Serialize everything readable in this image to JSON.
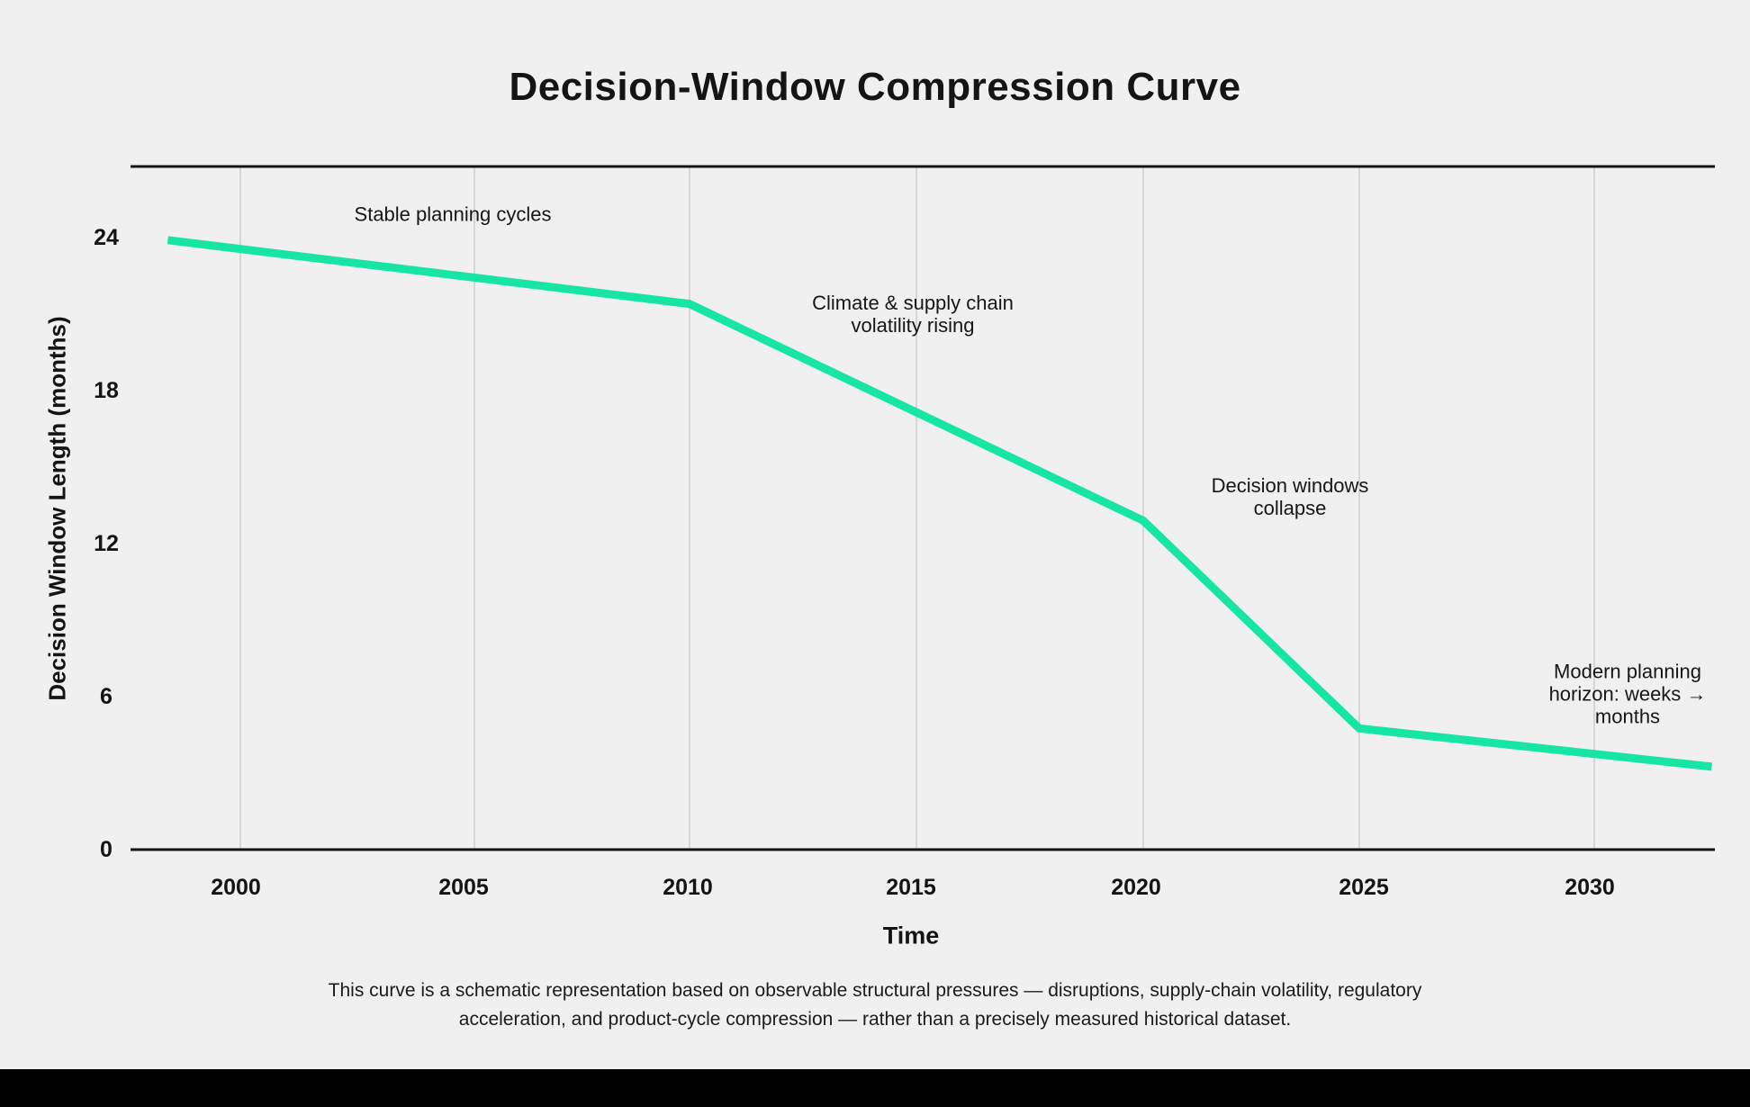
{
  "page": {
    "background_color": "#f0f0f0",
    "bottom_bar_color": "#000000",
    "text_color": "#161616"
  },
  "title": "Decision-Window Compression Curve",
  "chart_data": {
    "type": "line",
    "title": "Decision-Window Compression Curve",
    "xlabel": "Time",
    "ylabel": "Decision Window Length (months)",
    "x_ticks": [
      2000,
      2005,
      2010,
      2015,
      2020,
      2025,
      2030
    ],
    "x_tick_labels": [
      "2000",
      "2005",
      "2010",
      "2015",
      "2020",
      "2025",
      "2030"
    ],
    "y_ticks": [
      0,
      6,
      12,
      18,
      24
    ],
    "y_tick_labels_top_to_bottom": [
      "24",
      "18",
      "12",
      "6",
      "0"
    ],
    "xlim": [
      1997.6,
      2033.5
    ],
    "ylim": [
      0,
      26.8
    ],
    "grid": "vertical-gridlines-only",
    "legend": "none",
    "line_color": "#16e5a4",
    "line_width": 9,
    "gridline_color": "#d6d6d6",
    "axis_color": "#141414",
    "series": [
      {
        "name": "Decision window length (months)",
        "x": [
          1998.45,
          2010,
          2020,
          2025,
          2032.5
        ],
        "y": [
          23.9,
          21.4,
          12.9,
          4.75,
          3.25
        ]
      }
    ],
    "annotations": [
      {
        "id": "stable",
        "lines": [
          "Stable planning cycles"
        ]
      },
      {
        "id": "climate",
        "lines": [
          "Climate & supply chain",
          "volatility rising"
        ]
      },
      {
        "id": "collapse",
        "lines": [
          "Decision windows",
          "collapse"
        ]
      },
      {
        "id": "modern",
        "lines": [
          "Modern planning",
          "horizon: weeks →",
          "months"
        ]
      }
    ]
  },
  "caption": {
    "line1": "This curve is a schematic representation based on observable structural pressures — disruptions, supply-chain volatility, regulatory",
    "line2": "acceleration, and product-cycle compression — rather than a precisely measured historical dataset."
  }
}
